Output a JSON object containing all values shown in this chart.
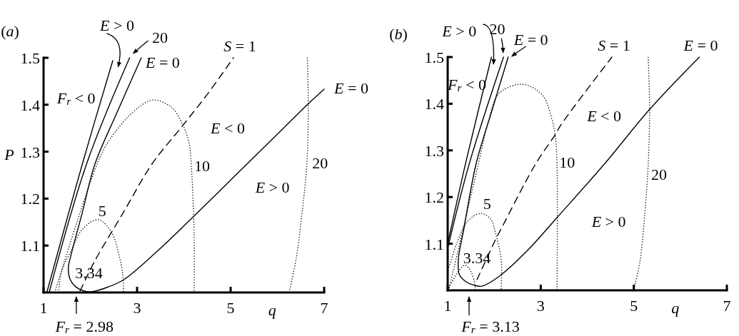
{
  "chart_data": [
    {
      "type": "line",
      "title": "(a)",
      "xlabel": "q",
      "ylabel": "P",
      "xlim": [
        1,
        7
      ],
      "xticks": [
        1,
        3,
        5,
        7
      ],
      "ylim": [
        1,
        1.5
      ],
      "yticks": [
        1.1,
        1.2,
        1.3,
        1.4,
        1.5
      ],
      "series": [
        {
          "color": "#000000",
          "line_style": "solid",
          "x": [
            1.07,
            1.83,
            2.48
          ],
          "values": [
            1.0,
            1.274,
            1.494
          ]
        },
        {
          "name": "20",
          "color": "#000000",
          "line_style": "solid",
          "x": [
            1.12,
            1.92,
            2.84
          ],
          "values": [
            1.0,
            1.274,
            1.5
          ]
        },
        {
          "color": "#000000",
          "line_style": "solid",
          "x": [
            3.09,
            2.56,
            2.1,
            1.82,
            1.59,
            1.53,
            1.56,
            1.69,
            1.87,
            2.05,
            2.36,
            2.71,
            3.42,
            4.23,
            5.2,
            6.16,
            6.64,
            7.0
          ],
          "values": [
            1.5,
            1.381,
            1.274,
            1.167,
            1.081,
            1.053,
            1.03,
            1.012,
            1.003,
            1.002,
            1.011,
            1.027,
            1.087,
            1.164,
            1.259,
            1.353,
            1.4,
            1.433
          ]
        },
        {
          "color": "#000000",
          "line_style": "dashed",
          "x": [
            1.78,
            2.1,
            2.71,
            3.32,
            3.93,
            4.5,
            5.06
          ],
          "values": [
            1.003,
            1.068,
            1.171,
            1.274,
            1.35,
            1.422,
            1.5
          ]
        },
        {
          "name": "5",
          "color": "#000000",
          "line_style": "dotted",
          "x": [
            1.32,
            1.39,
            1.6,
            1.85,
            2.18,
            2.46,
            2.61,
            2.69,
            2.71
          ],
          "values": [
            1.0,
            1.046,
            1.091,
            1.137,
            1.155,
            1.127,
            1.081,
            1.041,
            1.0
          ]
        },
        {
          "name": "10",
          "color": "#000000",
          "line_style": "dotted",
          "x": [
            1.24,
            2.21,
            2.51,
            2.92,
            3.33,
            3.73,
            3.94,
            4.11,
            4.16,
            4.22,
            4.22
          ],
          "values": [
            1.0,
            1.289,
            1.339,
            1.385,
            1.41,
            1.395,
            1.365,
            1.319,
            1.269,
            1.122,
            1.0
          ]
        },
        {
          "color": "#000000",
          "line_style": "dotted",
          "x": [
            6.64,
            6.66,
            6.63,
            6.53,
            6.4,
            6.25
          ],
          "values": [
            1.5,
            1.4,
            1.274,
            1.172,
            1.071,
            1.0
          ]
        }
      ],
      "annotations": [
        {
          "text": "E = 0",
          "x": 3.09,
          "y": 1.5
        },
        {
          "text": "S = 1",
          "x": 5.06,
          "y": 1.5
        },
        {
          "text": "E = 0",
          "x": 7.0,
          "y": 1.433
        },
        {
          "text": "3.34",
          "x": 1.97,
          "y": 1.042
        },
        "E > 0",
        "F$_{r}$ < 0",
        "E < 0",
        "20",
        "E > 0",
        "F$_{r}$ = 2.98"
      ]
    },
    {
      "type": "line",
      "title": "(b)",
      "xlabel": "q",
      "xlim": [
        1,
        7
      ],
      "xticks": [
        1,
        3,
        5,
        7
      ],
      "ylim": [
        1,
        1.5
      ],
      "yticks": [
        1.1,
        1.2,
        1.3,
        1.4,
        1.5
      ],
      "series": [
        {
          "color": "#000000",
          "line_style": "solid",
          "x": [
            1.0,
            1.38,
            1.94
          ],
          "values": [
            1.1,
            1.27,
            1.5
          ]
        },
        {
          "name": "20",
          "color": "#000000",
          "line_style": "solid",
          "x": [
            1.0,
            1.46,
            2.2
          ],
          "values": [
            1.09,
            1.27,
            1.5
          ]
        },
        {
          "color": "#000000",
          "line_style": "solid",
          "x": [
            2.3,
            1.95,
            1.61,
            1.35,
            1.23,
            1.25,
            1.4,
            1.61,
            1.74,
            2.12,
            2.73,
            3.35,
            4.37,
            5.34,
            6.41
          ],
          "values": [
            1.5,
            1.385,
            1.271,
            1.133,
            1.067,
            1.034,
            1.018,
            1.01,
            1.009,
            1.031,
            1.087,
            1.156,
            1.271,
            1.388,
            1.5
          ]
        },
        {
          "color": "#000000",
          "line_style": "dashed",
          "x": [
            1.63,
            1.69,
            2.02,
            2.17,
            2.89,
            3.3,
            3.45,
            4.53
          ],
          "values": [
            1.023,
            1.036,
            1.107,
            1.136,
            1.271,
            1.332,
            1.357,
            1.5
          ]
        },
        {
          "name": "5",
          "color": "#000000",
          "line_style": "dotted",
          "x": [
            1.0,
            1.05,
            1.2,
            1.43,
            1.71,
            1.92,
            2.04,
            2.15,
            2.15
          ],
          "values": [
            1.044,
            1.057,
            1.102,
            1.148,
            1.165,
            1.153,
            1.118,
            1.067,
            1.0
          ]
        },
        {
          "name": "10",
          "color": "#000000",
          "line_style": "dotted",
          "x": [
            1.02,
            1.66,
            1.86,
            2.07,
            2.35,
            2.66,
            3.04,
            3.24,
            3.32,
            3.35,
            3.35
          ],
          "values": [
            1.0,
            1.271,
            1.357,
            1.418,
            1.437,
            1.441,
            1.418,
            1.367,
            1.324,
            1.271,
            1.0
          ]
        },
        {
          "color": "#000000",
          "line_style": "dotted",
          "x": [
            5.31,
            5.34,
            5.31,
            5.24,
            5.14,
            5.01,
            4.99
          ],
          "values": [
            1.5,
            1.388,
            1.271,
            1.169,
            1.067,
            1.006,
            1.0
          ]
        },
        {
          "name": "3.34",
          "color": "#000000",
          "line_style": "dotted",
          "x": [
            1.02,
            1.25,
            1.37,
            1.5,
            1.58,
            1.59
          ],
          "values": [
            1.005,
            1.043,
            1.054,
            1.04,
            1.015,
            1.0
          ]
        }
      ],
      "annotations": [
        {
          "text": "E = 0",
          "x": 2.33,
          "y": 1.5
        },
        {
          "text": "S = 1",
          "x": 4.53,
          "y": 1.5
        },
        {
          "text": "E = 0",
          "x": 6.41,
          "y": 1.5
        },
        "E > 0",
        "F$_{r}$ < 0",
        "E < 0",
        "20",
        "E > 0",
        "F$_{r}$ = 3.13"
      ]
    }
  ]
}
